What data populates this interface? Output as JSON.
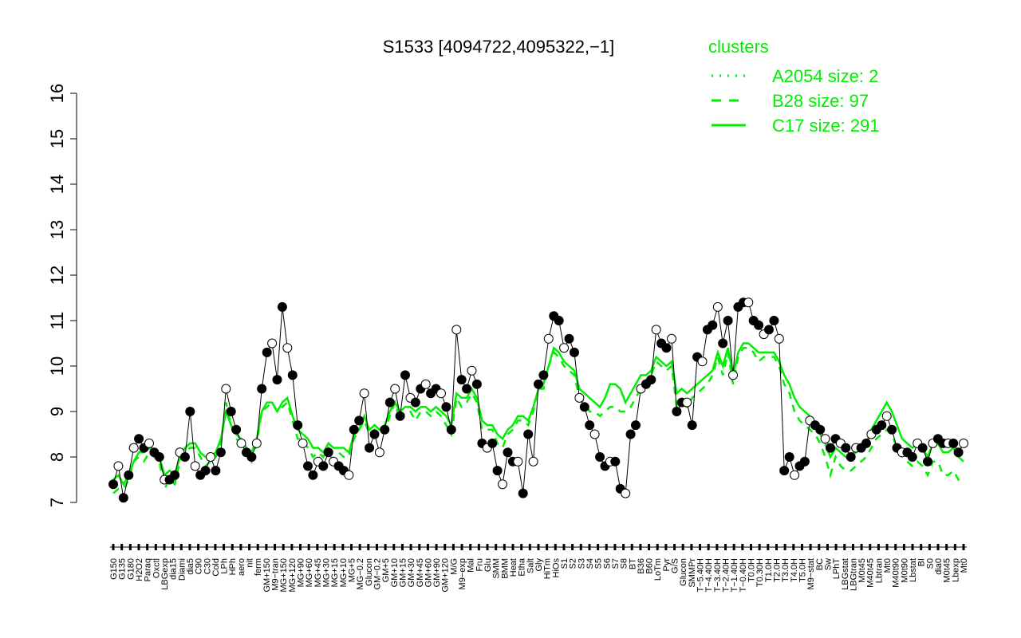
{
  "chart_data": {
    "type": "line",
    "title": "S1533 [4094722,4095322,−1]",
    "xlabel": "",
    "ylabel": "",
    "ylim": [
      7,
      16
    ],
    "yticks": [
      7,
      8,
      9,
      10,
      11,
      12,
      13,
      14,
      15,
      16
    ],
    "grid": false,
    "legend": {
      "title": "clusters",
      "placement": "top-right",
      "color": "#00ee00",
      "entries": [
        {
          "label": "A2054 size: 2",
          "style": "dotted"
        },
        {
          "label": "B28 size: 97",
          "style": "dashed"
        },
        {
          "label": "C17 size: 291",
          "style": "solid"
        }
      ]
    },
    "x_tick_labels": [
      "G150",
      "G135",
      "G180",
      "H2O2",
      "Paraq",
      "Oxctl",
      "LBGexp",
      "dia15",
      "Diami",
      "dia5",
      "C90",
      "C30",
      "Cold",
      "LPh",
      "HPh",
      "aero",
      "nit",
      "ferm",
      "GM+150",
      "M9−tran",
      "MG+150",
      "MG+120",
      "MG+90",
      "MG+60",
      "MG+45",
      "MG+30",
      "MG+15",
      "MG+10",
      "MG+5",
      "MG−0.2",
      "Glucon",
      "GM−0.2",
      "GM+5",
      "GM+10",
      "GM+15",
      "GM+30",
      "GM+45",
      "GM+60",
      "GM+90",
      "GM+120",
      "M/G",
      "M9−exp",
      "Mal",
      "Fru",
      "Glu",
      "SMM",
      "BMM",
      "Heat",
      "Etha",
      "Salt",
      "Gly",
      "HiTm",
      "HiOs",
      "S1",
      "S2",
      "S3",
      "S4",
      "S5",
      "S6",
      "S7",
      "S8",
      "BT",
      "B36",
      "B60",
      "LoTm",
      "Pyr",
      "G/S",
      "Glucon",
      "SMMPr",
      "T−5.40H",
      "T−4.40H",
      "T−3.40H",
      "T−2.40H",
      "T−1.40H",
      "T−0.40H",
      "T0.0H",
      "T0.30H",
      "T1.0H",
      "T2.0H",
      "T3.0H",
      "T4.0H",
      "T5.0H",
      "M9−stat",
      "BC",
      "Sw",
      "LPhT",
      "LBGstat",
      "LBGtran",
      "M0t45",
      "M40t45",
      "Lbtran",
      "Mt0",
      "M40t90",
      "M0t90",
      "Lbstat",
      "BI",
      "S0",
      "dia0",
      "M0t45",
      "Lbexp",
      "Mt0"
    ],
    "series": [
      {
        "name": "",
        "values": [
          7.4,
          7.8,
          7.1,
          7.6,
          8.2,
          8.4,
          8.2,
          8.3,
          8.1,
          8.0,
          7.5,
          7.5,
          7.6,
          8.1,
          8.0,
          9.0,
          7.8,
          7.6,
          7.7,
          8.0,
          7.7,
          8.1,
          9.5,
          9.0,
          8.6,
          8.3,
          8.1,
          8.0,
          8.3,
          9.5,
          10.3,
          10.5,
          9.7,
          11.3,
          10.4,
          9.8,
          8.7,
          8.3,
          7.8,
          7.6,
          7.9,
          7.8,
          8.1,
          7.9,
          7.8,
          7.7,
          7.6,
          8.6,
          8.8,
          9.4,
          8.2,
          8.5,
          8.1,
          8.6,
          9.2,
          9.5,
          8.9,
          9.8,
          9.3,
          9.2,
          9.5,
          9.6,
          9.4,
          9.5,
          9.4,
          9.1,
          8.6,
          10.8,
          9.7,
          9.5,
          9.9,
          9.6,
          8.3,
          8.2,
          8.3,
          7.7,
          7.4,
          8.1,
          7.9,
          7.9,
          7.2,
          8.5,
          7.9,
          9.6,
          9.8,
          10.6,
          11.1,
          11.0,
          10.4,
          10.6,
          10.3,
          9.3,
          9.1,
          8.7,
          8.5,
          8.0,
          7.8,
          7.9,
          7.9,
          7.3,
          7.2,
          8.5,
          8.7,
          9.5,
          9.6,
          9.7,
          10.8,
          10.5,
          10.4,
          10.6,
          9.0,
          9.2,
          9.2,
          8.7,
          10.2,
          10.1,
          10.8,
          10.9,
          11.3,
          10.5,
          11.0,
          9.8,
          11.3,
          11.4,
          11.4,
          11.0,
          10.9,
          10.7,
          10.8,
          11.0,
          10.6,
          7.7,
          8.0,
          7.6,
          7.8,
          7.9,
          8.8,
          8.7,
          8.6,
          8.4,
          8.2,
          8.4,
          8.3,
          8.2,
          8.0,
          8.2,
          8.2,
          8.3,
          8.5,
          8.6,
          8.7,
          8.9,
          8.6,
          8.2,
          8.1,
          8.1,
          8.0,
          8.3,
          8.2,
          7.9,
          8.3,
          8.4,
          8.3,
          8.3,
          8.3,
          8.1,
          8.3
        ]
      },
      {
        "name": "",
        "values": [
          7.2,
          7.3,
          7.3,
          7.5,
          7.9,
          8.0,
          7.9,
          8.1,
          8.0,
          7.9,
          7.3,
          7.5,
          7.4,
          7.9,
          8.1,
          8.2,
          8.2,
          8.0,
          7.8,
          7.9,
          8.0,
          8.3,
          9.2,
          8.7,
          8.4,
          8.3,
          8.1,
          7.9,
          8.3,
          9.0,
          9.1,
          9.2,
          9.0,
          9.1,
          9.2,
          8.8,
          8.4,
          8.4,
          8.2,
          8.0,
          8.1,
          8.0,
          8.2,
          8.1,
          8.1,
          8.0,
          8.0,
          8.4,
          8.6,
          8.8,
          8.5,
          8.6,
          8.5,
          8.6,
          8.9,
          9.2,
          8.8,
          9.0,
          9.0,
          8.8,
          9.0,
          9.0,
          8.9,
          9.0,
          8.9,
          8.7,
          8.5,
          9.3,
          9.1,
          9.2,
          9.4,
          9.2,
          8.6,
          8.6,
          8.6,
          8.3,
          8.2,
          8.5,
          8.6,
          8.8,
          8.8,
          8.7,
          9.0,
          9.5,
          9.5,
          10.0,
          10.3,
          10.2,
          10.0,
          9.9,
          9.8,
          9.3,
          9.2,
          9.0,
          9.0,
          8.9,
          9.0,
          9.1,
          9.1,
          9.0,
          9.0,
          9.1,
          9.3,
          9.5,
          9.7,
          9.8,
          10.1,
          10.0,
          9.9,
          10.0,
          9.1,
          9.2,
          9.1,
          9.3,
          9.4,
          9.5,
          9.6,
          9.8,
          10.2,
          9.8,
          10.3,
          9.6,
          10.2,
          10.4,
          10.4,
          10.3,
          10.1,
          10.2,
          10.2,
          10.2,
          10.0,
          9.6,
          9.4,
          9.0,
          8.8,
          8.7,
          8.6,
          8.5,
          8.3,
          8.0,
          7.6,
          8.0,
          7.8,
          7.7,
          7.7,
          7.8,
          7.9,
          8.0,
          8.2,
          8.4,
          8.5,
          8.6,
          8.5,
          8.2,
          8.0,
          7.9,
          7.8,
          7.9,
          7.8,
          7.6,
          7.9,
          7.9,
          7.6,
          7.6,
          7.7,
          7.5,
          7.4
        ]
      },
      {
        "name": "",
        "values": [
          7.5,
          7.6,
          7.4,
          7.6,
          7.9,
          8.1,
          8.1,
          8.2,
          8.1,
          8.0,
          7.6,
          7.7,
          7.6,
          8.0,
          8.2,
          8.3,
          8.3,
          8.1,
          8.0,
          8.0,
          8.1,
          8.4,
          9.0,
          8.7,
          8.5,
          8.4,
          8.2,
          8.1,
          8.4,
          9.0,
          9.2,
          9.2,
          9.0,
          9.2,
          9.3,
          8.9,
          8.6,
          8.5,
          8.4,
          8.2,
          8.2,
          8.1,
          8.3,
          8.2,
          8.2,
          8.2,
          8.1,
          8.5,
          8.6,
          8.9,
          8.6,
          8.7,
          8.6,
          8.7,
          9.0,
          9.2,
          9.0,
          9.1,
          9.1,
          9.0,
          9.1,
          9.1,
          9.0,
          9.1,
          9.0,
          8.9,
          8.7,
          9.4,
          9.3,
          9.3,
          9.5,
          9.3,
          8.8,
          8.7,
          8.7,
          8.5,
          8.4,
          8.6,
          8.7,
          8.9,
          8.9,
          8.8,
          9.1,
          9.5,
          9.6,
          10.0,
          10.4,
          10.3,
          10.1,
          10.0,
          9.9,
          9.5,
          9.4,
          9.3,
          9.2,
          9.1,
          9.3,
          9.6,
          9.6,
          9.5,
          9.2,
          9.4,
          9.6,
          9.8,
          9.8,
          9.9,
          10.2,
          10.1,
          10.0,
          10.1,
          9.4,
          9.5,
          9.4,
          9.5,
          9.6,
          9.7,
          9.8,
          9.9,
          10.3,
          10.0,
          10.4,
          9.8,
          10.3,
          10.5,
          10.5,
          10.4,
          10.3,
          10.3,
          10.3,
          10.3,
          10.1,
          9.8,
          9.6,
          9.3,
          9.1,
          9.0,
          8.9,
          8.7,
          8.5,
          8.3,
          8.0,
          8.2,
          8.1,
          8.0,
          8.0,
          8.1,
          8.2,
          8.3,
          8.6,
          8.8,
          9.0,
          9.2,
          9.0,
          8.7,
          8.4,
          8.3,
          8.2,
          8.3,
          8.2,
          8.0,
          8.3,
          8.3,
          8.1,
          8.1,
          8.2,
          8.0,
          7.9
        ]
      }
    ]
  }
}
